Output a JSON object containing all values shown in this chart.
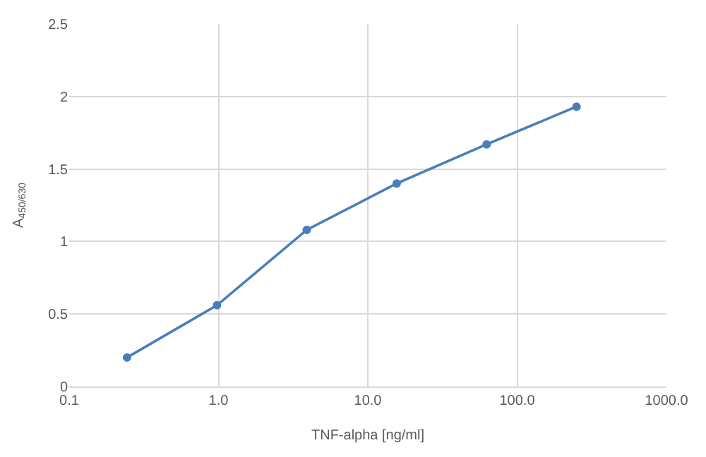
{
  "chart_data": {
    "type": "line",
    "xlabel": "TNF-alpha [ng/ml]",
    "ylabel": "A$_{450/630}$",
    "x": [
      0.244,
      0.977,
      3.9,
      15.6,
      62.5,
      250
    ],
    "series": [
      {
        "color": "#4a7ebb",
        "values": [
          0.2,
          0.56,
          1.08,
          1.4,
          1.67,
          1.93
        ]
      }
    ],
    "log": "x",
    "xlim": [
      0.1,
      1000
    ],
    "xticks": [
      {
        "value": 0.1,
        "label": "0.1"
      },
      {
        "value": 1,
        "label": "1.0"
      },
      {
        "value": 10,
        "label": "10.0"
      },
      {
        "value": 100,
        "label": "100.0"
      },
      {
        "value": 1000,
        "label": "1000.0"
      }
    ],
    "ylim": [
      0,
      2.5
    ],
    "yticks": [
      0,
      0.5,
      1,
      1.5,
      2,
      2.5
    ],
    "grid": true,
    "marker": "circle",
    "line_style": "solid"
  }
}
